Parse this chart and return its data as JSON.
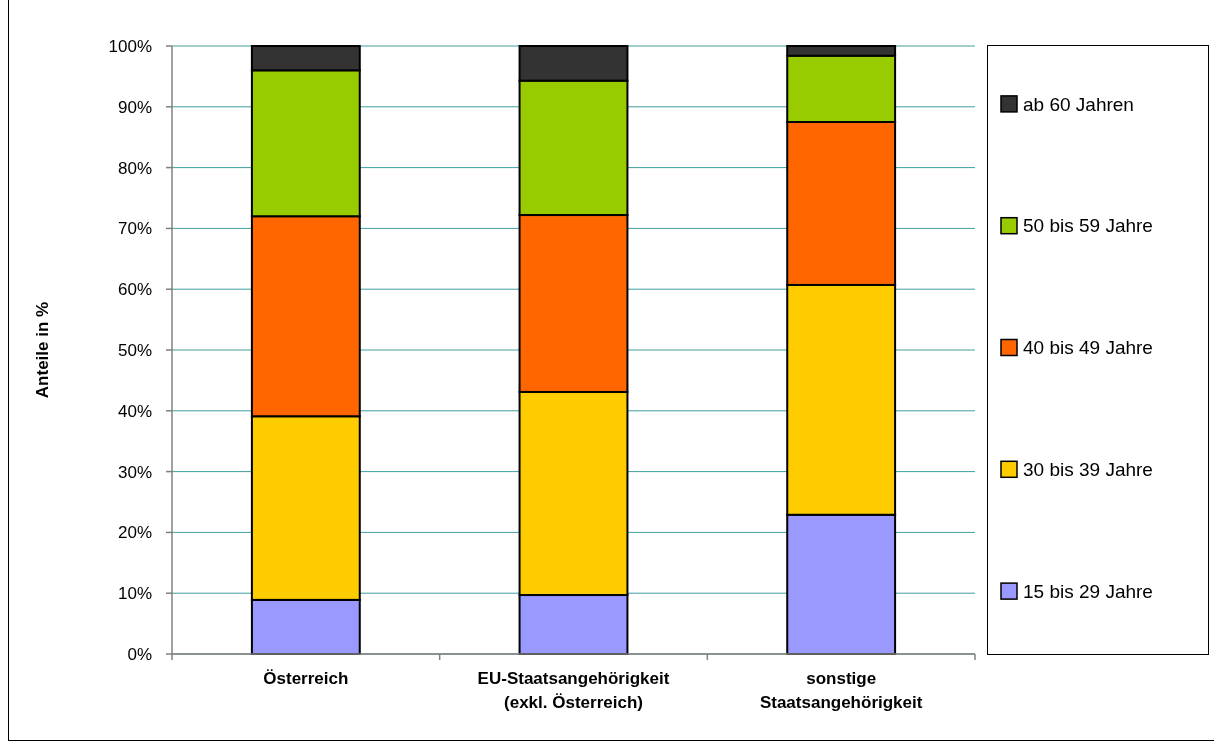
{
  "chart_data": {
    "type": "bar",
    "stacked": true,
    "categories": [
      "Österreich",
      "EU-Staatsangehörigkeit\n(exkl. Österreich)",
      "sonstige\nStaatsangehörigkeit"
    ],
    "series": [
      {
        "name": "15 bis 29 Jahre",
        "color": "#9999ff",
        "values": [
          8.9,
          9.7,
          22.9
        ]
      },
      {
        "name": "30 bis 39 Jahre",
        "color": "#ffcc00",
        "values": [
          30.2,
          33.4,
          37.8
        ]
      },
      {
        "name": "40 bis 49 Jahre",
        "color": "#ff6600",
        "values": [
          32.9,
          29.1,
          26.8
        ]
      },
      {
        "name": "50 bis 59 Jahre",
        "color": "#99cc00",
        "values": [
          24.0,
          22.1,
          10.9
        ]
      },
      {
        "name": "ab 60 Jahren",
        "color": "#333333",
        "values": [
          4.0,
          5.7,
          1.6
        ]
      }
    ],
    "ylabel": "Anteile in %",
    "ylim": [
      0,
      100
    ],
    "yticks": [
      {
        "value": 0,
        "label": "0%"
      },
      {
        "value": 10,
        "label": "10%"
      },
      {
        "value": 20,
        "label": "20%"
      },
      {
        "value": 30,
        "label": "30%"
      },
      {
        "value": 40,
        "label": "40%"
      },
      {
        "value": 50,
        "label": "50%"
      },
      {
        "value": 60,
        "label": "60%"
      },
      {
        "value": 70,
        "label": "70%"
      },
      {
        "value": 80,
        "label": "80%"
      },
      {
        "value": 90,
        "label": "90%"
      },
      {
        "value": 100,
        "label": "100%"
      }
    ],
    "grid": "y",
    "legend": "right"
  }
}
